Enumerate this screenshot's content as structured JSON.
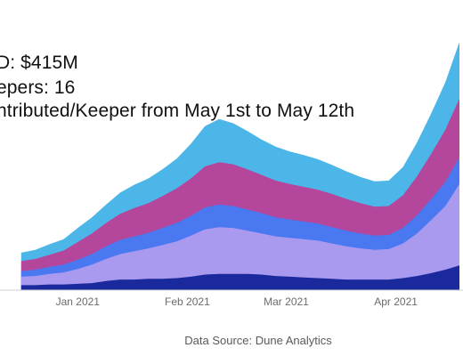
{
  "chart_data": {
    "type": "area",
    "stacked": true,
    "title_lines": [
      "D: $415M",
      "epers: 16",
      "ntributed/Keeper from May 1st to May 12th"
    ],
    "source": "Data Source: Dune Analytics",
    "x_tick_labels": [
      "Jan 2021",
      "Feb 2021",
      "Mar 2021",
      "Apr 2021"
    ],
    "x_tick_dates": [
      "2021-01-01",
      "2021-02-01",
      "2021-03-01",
      "2021-04-01"
    ],
    "x": [
      "2020-12-16",
      "2020-12-20",
      "2020-12-24",
      "2020-12-28",
      "2021-01-01",
      "2021-01-05",
      "2021-01-09",
      "2021-01-13",
      "2021-01-17",
      "2021-01-21",
      "2021-01-25",
      "2021-01-29",
      "2021-02-02",
      "2021-02-06",
      "2021-02-10",
      "2021-02-14",
      "2021-02-18",
      "2021-02-22",
      "2021-02-26",
      "2021-03-02",
      "2021-03-06",
      "2021-03-10",
      "2021-03-14",
      "2021-03-18",
      "2021-03-22",
      "2021-03-26",
      "2021-03-30",
      "2021-04-03",
      "2021-04-07",
      "2021-04-11",
      "2021-04-15",
      "2021-04-19"
    ],
    "grid": false,
    "legend": "none",
    "colors": [
      "#1a2a9c",
      "#a99af0",
      "#4a78f0",
      "#b4469c",
      "#4db6e8"
    ],
    "series": [
      {
        "values": [
          0.7,
          0.7,
          0.8,
          0.8,
          0.9,
          1.0,
          1.3,
          1.5,
          1.5,
          1.6,
          1.6,
          1.7,
          1.9,
          2.2,
          2.3,
          2.3,
          2.3,
          2.2,
          2.0,
          1.9,
          1.8,
          1.7,
          1.6,
          1.5,
          1.5,
          1.5,
          1.5,
          1.7,
          2.0,
          2.4,
          2.9,
          3.5
        ]
      },
      {
        "values": [
          1.2,
          1.3,
          1.5,
          1.7,
          2.1,
          2.6,
          3.1,
          3.6,
          4.0,
          4.3,
          4.8,
          5.2,
          5.8,
          6.4,
          6.6,
          6.5,
          6.1,
          5.8,
          5.6,
          5.5,
          5.4,
          5.3,
          5.0,
          4.7,
          4.4,
          4.2,
          4.3,
          4.9,
          6.0,
          7.5,
          9.0,
          11.5
        ]
      },
      {
        "values": [
          0.8,
          0.9,
          1.0,
          1.1,
          1.3,
          1.5,
          1.8,
          2.0,
          2.1,
          2.2,
          2.4,
          2.6,
          2.8,
          3.1,
          3.2,
          3.1,
          3.0,
          2.9,
          2.7,
          2.6,
          2.5,
          2.4,
          2.3,
          2.2,
          2.1,
          2.0,
          2.0,
          2.2,
          2.6,
          3.0,
          3.4,
          3.8
        ]
      },
      {
        "values": [
          1.4,
          1.5,
          1.7,
          2.0,
          2.5,
          2.9,
          3.3,
          3.7,
          4.0,
          4.2,
          4.5,
          4.9,
          5.3,
          5.8,
          6.0,
          5.9,
          5.7,
          5.4,
          5.2,
          5.0,
          4.9,
          4.8,
          4.7,
          4.5,
          4.3,
          4.1,
          4.1,
          4.6,
          5.5,
          6.4,
          7.4,
          8.3
        ]
      },
      {
        "values": [
          1.2,
          1.3,
          1.5,
          1.6,
          2.0,
          2.3,
          2.6,
          3.0,
          3.3,
          3.5,
          3.8,
          4.2,
          4.9,
          5.7,
          6.1,
          5.8,
          5.4,
          5.0,
          4.8,
          4.6,
          4.5,
          4.3,
          4.1,
          3.9,
          3.7,
          3.6,
          3.6,
          4.0,
          4.8,
          5.7,
          6.7,
          8.0
        ]
      }
    ]
  }
}
